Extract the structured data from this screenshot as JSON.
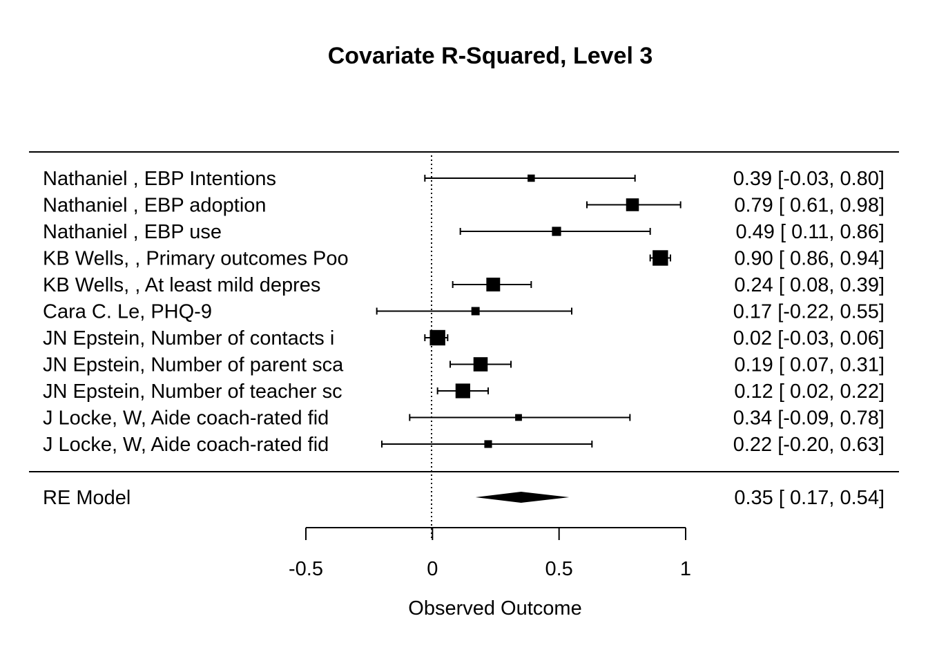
{
  "chart_data": {
    "type": "forest",
    "title": "Covariate R-Squared, Level 3",
    "xlabel": "Observed Outcome",
    "xlim": [
      -0.5,
      1
    ],
    "x_ticks": [
      "-0.5",
      "0",
      "0.5",
      "1"
    ],
    "x_tick_values": [
      -0.5,
      0,
      0.5,
      1
    ],
    "reference_line": 0,
    "studies": [
      {
        "label": "Nathaniel , EBP Intentions",
        "estimate": 0.39,
        "lower": -0.03,
        "upper": 0.8,
        "ci_text": "0.39 [-0.03, 0.80]",
        "weight": 1
      },
      {
        "label": "Nathaniel , EBP adoption",
        "estimate": 0.79,
        "lower": 0.61,
        "upper": 0.98,
        "ci_text": "0.79 [ 0.61, 0.98]",
        "weight": 5
      },
      {
        "label": "Nathaniel , EBP use",
        "estimate": 0.49,
        "lower": 0.11,
        "upper": 0.86,
        "ci_text": "0.49 [ 0.11, 0.86]",
        "weight": 2
      },
      {
        "label": "KB Wells, , Primary outcomes Poo",
        "estimate": 0.9,
        "lower": 0.86,
        "upper": 0.94,
        "ci_text": "0.90 [ 0.86, 0.94]",
        "weight": 8
      },
      {
        "label": "KB Wells, , At least mild depres",
        "estimate": 0.24,
        "lower": 0.08,
        "upper": 0.39,
        "ci_text": "0.24 [ 0.08, 0.39]",
        "weight": 6
      },
      {
        "label": "Cara C. Le, PHQ-9",
        "estimate": 0.17,
        "lower": -0.22,
        "upper": 0.55,
        "ci_text": "0.17 [-0.22, 0.55]",
        "weight": 1.5
      },
      {
        "label": "JN Epstein, Number of contacts i",
        "estimate": 0.02,
        "lower": -0.03,
        "upper": 0.06,
        "ci_text": "0.02 [-0.03, 0.06]",
        "weight": 8
      },
      {
        "label": "JN Epstein, Number of parent sca",
        "estimate": 0.19,
        "lower": 0.07,
        "upper": 0.31,
        "ci_text": "0.19 [ 0.07, 0.31]",
        "weight": 6.5
      },
      {
        "label": "JN Epstein, Number of teacher sc",
        "estimate": 0.12,
        "lower": 0.02,
        "upper": 0.22,
        "ci_text": "0.12 [ 0.02, 0.22]",
        "weight": 7
      },
      {
        "label": "J Locke, W, Aide coach-rated fid",
        "estimate": 0.34,
        "lower": -0.09,
        "upper": 0.78,
        "ci_text": "0.34 [-0.09, 0.78]",
        "weight": 0.8
      },
      {
        "label": "J Locke, W, Aide coach-rated fid",
        "estimate": 0.22,
        "lower": -0.2,
        "upper": 0.63,
        "ci_text": "0.22 [-0.20, 0.63]",
        "weight": 1.2
      }
    ],
    "summary": {
      "label": "RE Model",
      "estimate": 0.35,
      "lower": 0.17,
      "upper": 0.54,
      "ci_text": "0.35 [ 0.17, 0.54]"
    }
  }
}
